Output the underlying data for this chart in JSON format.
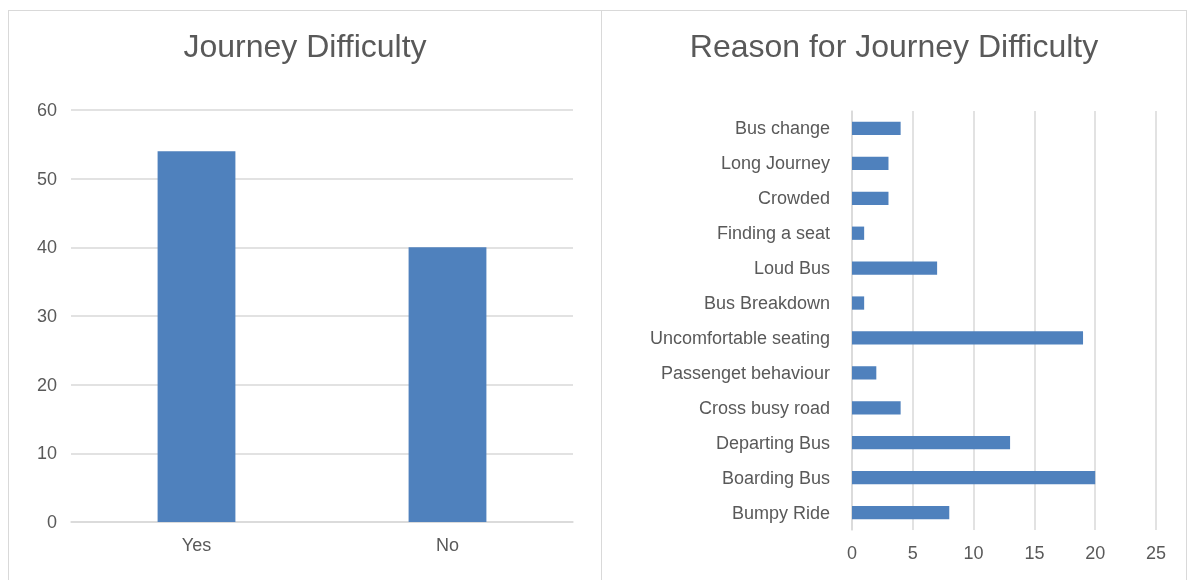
{
  "chart_data": [
    {
      "type": "bar",
      "title": "Journey Difficulty",
      "categories": [
        "Yes",
        "No"
      ],
      "values": [
        54,
        40
      ],
      "color": "#4f81bd",
      "ylim": [
        0,
        60
      ],
      "yticks": [
        0,
        10,
        20,
        30,
        40,
        50,
        60
      ],
      "grid": "y"
    },
    {
      "type": "bar",
      "title": "Reason for Journey Difficulty",
      "orientation": "horizontal",
      "categories": [
        "Bus change",
        "Long Journey",
        "Crowded",
        "Finding a seat",
        "Loud Bus",
        "Bus Breakdown",
        "Uncomfortable seating",
        "Passenget behaviour",
        "Cross busy road",
        "Departing Bus",
        "Boarding Bus",
        "Bumpy Ride"
      ],
      "values": [
        4,
        3,
        3,
        1,
        7,
        1,
        19,
        2,
        4,
        13,
        20,
        8
      ],
      "color": "#4f81bd",
      "xlim": [
        0,
        25
      ],
      "xticks": [
        0,
        5,
        10,
        15,
        20,
        25
      ],
      "grid": "x"
    }
  ]
}
